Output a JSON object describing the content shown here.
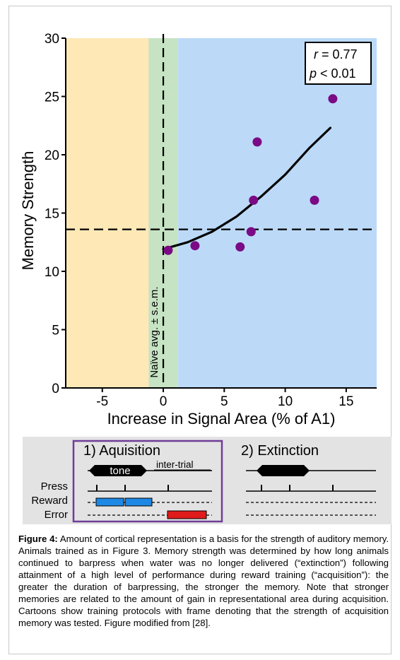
{
  "chart_data": {
    "type": "scatter",
    "xlabel": "Increase in Signal Area (% of A1)",
    "ylabel": "Memory Strength",
    "xlim": [
      -8,
      17.5
    ],
    "ylim": [
      0,
      30
    ],
    "xticks": [
      -5,
      0,
      5,
      10,
      15
    ],
    "yticks": [
      0,
      5,
      10,
      15,
      20,
      25,
      30
    ],
    "grid": false,
    "regions": [
      {
        "from": -8,
        "to": -1.2,
        "color": "#fde8b6"
      },
      {
        "from": -1.2,
        "to": 1.2,
        "color": "#c6e3c3"
      },
      {
        "from": 1.2,
        "to": 17.5,
        "color": "#bcdaf8"
      }
    ],
    "series": [
      {
        "x": [
          0.4,
          2.6,
          6.3,
          7.2,
          7.4,
          7.7,
          12.4,
          13.9
        ],
        "y": [
          11.8,
          12.2,
          12.1,
          13.4,
          16.1,
          21.1,
          16.1,
          24.8
        ],
        "color": "#7b0a86"
      }
    ],
    "fit_curve": {
      "x": [
        0,
        2,
        4,
        6,
        8,
        10,
        12,
        13.7
      ],
      "y": [
        11.9,
        12.5,
        13.4,
        14.7,
        16.4,
        18.3,
        20.6,
        22.3
      ]
    },
    "reference_lines": {
      "horizontal_y": 13.6,
      "vertical_x": 0
    },
    "vertical_label": "Naïve avg. ± s.e.m.",
    "stats": {
      "r_label": "r",
      "r_value": " = 0.77",
      "p_label": "p",
      "p_value": " < 0.01"
    }
  },
  "protocol": {
    "panel1_title": "1) Aquisition",
    "panel2_title": "2) Extinction",
    "tone_label": "tone",
    "intertrial_label": "inter-trial",
    "row_labels": [
      "Press",
      "Reward",
      "Error"
    ],
    "frame_color": "#6f3d97",
    "reward_color": "#1e88e5",
    "error_color": "#e01b1b"
  },
  "caption": {
    "label": "Figure 4:",
    "text": " Amount of cortical representation is a basis for the strength of auditory memory. Animals trained as in Figure 3. Memory strength was determined by how long animals continued to barpress when water was no longer delivered (“extinction”) following attainment of a high level of performance during reward training (“acquisition”): the greater the duration of barpressing, the stronger the memory. Note that stronger memories are related to the amount of gain in representational area during acquisition. Cartoons show training protocols with frame denoting that the strength of acquisition memory was tested. Figure modified from [28]."
  }
}
